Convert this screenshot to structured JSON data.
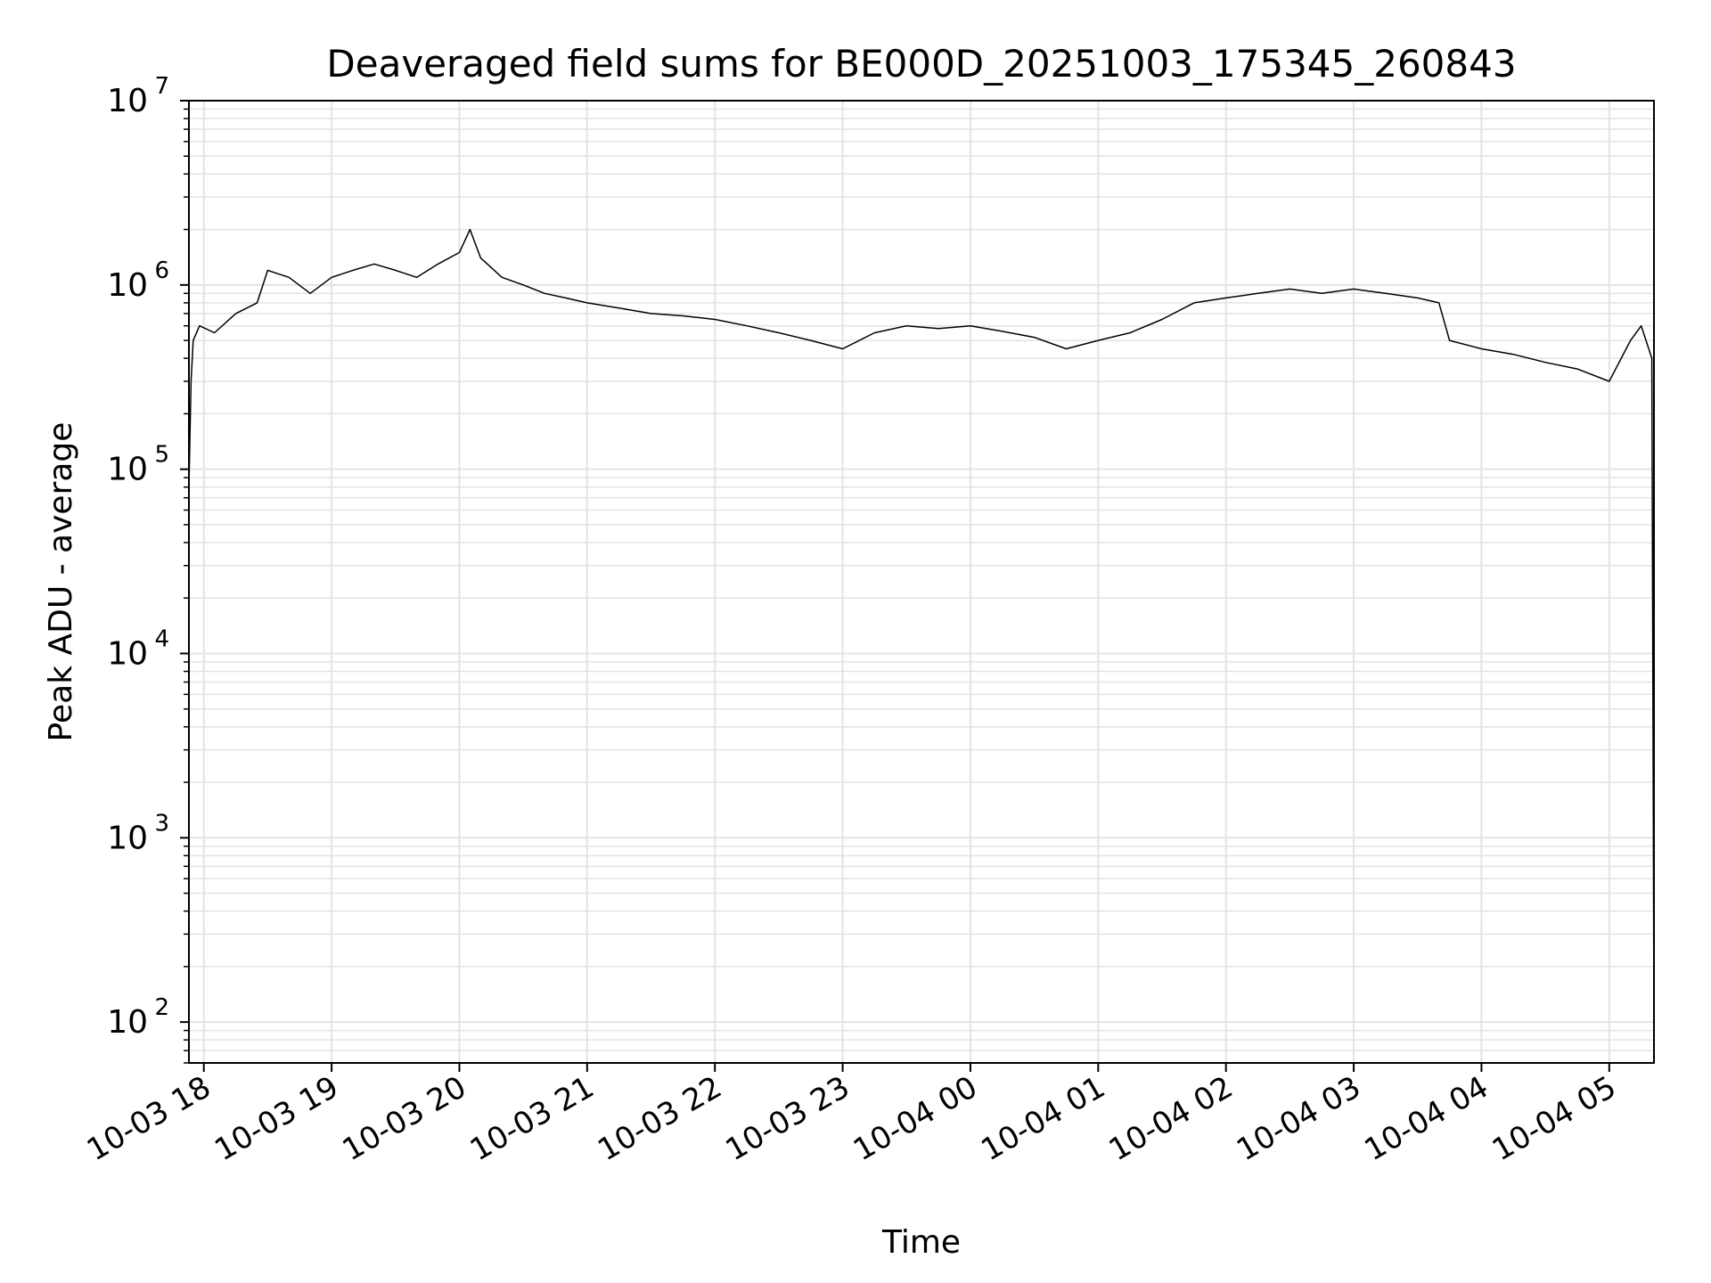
{
  "chart_data": {
    "type": "line",
    "title": "Deaveraged field sums for BE000D_20251003_175345_260843",
    "xlabel": "Time",
    "ylabel": "Peak ADU - average",
    "xlim": [
      "2025-10-03 17:53",
      "2025-10-04 05:21"
    ],
    "ylim": [
      60,
      10000000
    ],
    "yscale": "log",
    "grid": true,
    "legend": "none",
    "line_color": "#000000",
    "grid_color": "#e3e3e3",
    "x_ticks": [
      {
        "value": "2025-10-03 18:00",
        "label": "10-03 18"
      },
      {
        "value": "2025-10-03 19:00",
        "label": "10-03 19"
      },
      {
        "value": "2025-10-03 20:00",
        "label": "10-03 20"
      },
      {
        "value": "2025-10-03 21:00",
        "label": "10-03 21"
      },
      {
        "value": "2025-10-03 22:00",
        "label": "10-03 22"
      },
      {
        "value": "2025-10-03 23:00",
        "label": "10-03 23"
      },
      {
        "value": "2025-10-04 00:00",
        "label": "10-04 00"
      },
      {
        "value": "2025-10-04 01:00",
        "label": "10-04 01"
      },
      {
        "value": "2025-10-04 02:00",
        "label": "10-04 02"
      },
      {
        "value": "2025-10-04 03:00",
        "label": "10-04 03"
      },
      {
        "value": "2025-10-04 04:00",
        "label": "10-04 04"
      },
      {
        "value": "2025-10-04 05:00",
        "label": "10-04 05"
      }
    ],
    "y_ticks": [
      {
        "value": 100,
        "base": "10",
        "exp": "2"
      },
      {
        "value": 1000,
        "base": "10",
        "exp": "3"
      },
      {
        "value": 10000,
        "base": "10",
        "exp": "4"
      },
      {
        "value": 100000,
        "base": "10",
        "exp": "5"
      },
      {
        "value": 1000000,
        "base": "10",
        "exp": "6"
      },
      {
        "value": 10000000,
        "base": "10",
        "exp": "7"
      }
    ],
    "series": [
      {
        "x": [
          "2025-10-03 17:53",
          "2025-10-03 17:54",
          "2025-10-03 17:55",
          "2025-10-03 17:58",
          "2025-10-03 18:05",
          "2025-10-03 18:15",
          "2025-10-03 18:25",
          "2025-10-03 18:30",
          "2025-10-03 18:40",
          "2025-10-03 18:50",
          "2025-10-03 19:00",
          "2025-10-03 19:10",
          "2025-10-03 19:20",
          "2025-10-03 19:30",
          "2025-10-03 19:40",
          "2025-10-03 19:50",
          "2025-10-03 20:00",
          "2025-10-03 20:05",
          "2025-10-03 20:10",
          "2025-10-03 20:20",
          "2025-10-03 20:30",
          "2025-10-03 20:40",
          "2025-10-03 20:50",
          "2025-10-03 21:00",
          "2025-10-03 21:15",
          "2025-10-03 21:30",
          "2025-10-03 21:45",
          "2025-10-03 22:00",
          "2025-10-03 22:15",
          "2025-10-03 22:30",
          "2025-10-03 22:45",
          "2025-10-03 23:00",
          "2025-10-03 23:15",
          "2025-10-03 23:30",
          "2025-10-03 23:45",
          "2025-10-04 00:00",
          "2025-10-04 00:15",
          "2025-10-04 00:30",
          "2025-10-04 00:45",
          "2025-10-04 01:00",
          "2025-10-04 01:15",
          "2025-10-04 01:30",
          "2025-10-04 01:45",
          "2025-10-04 02:00",
          "2025-10-04 02:15",
          "2025-10-04 02:30",
          "2025-10-04 02:45",
          "2025-10-04 03:00",
          "2025-10-04 03:15",
          "2025-10-04 03:30",
          "2025-10-04 03:40",
          "2025-10-04 03:45",
          "2025-10-04 04:00",
          "2025-10-04 04:15",
          "2025-10-04 04:30",
          "2025-10-04 04:45",
          "2025-10-04 05:00",
          "2025-10-04 05:10",
          "2025-10-04 05:15",
          "2025-10-04 05:20",
          "2025-10-04 05:21"
        ],
        "y": [
          80000,
          300000,
          500000,
          600000,
          550000,
          700000,
          800000,
          1200000,
          1100000,
          900000,
          1100000,
          1200000,
          1300000,
          1200000,
          1100000,
          1300000,
          1500000,
          2000000,
          1400000,
          1100000,
          1000000,
          900000,
          850000,
          800000,
          750000,
          700000,
          680000,
          650000,
          600000,
          550000,
          500000,
          450000,
          550000,
          600000,
          580000,
          600000,
          560000,
          520000,
          450000,
          500000,
          550000,
          650000,
          800000,
          850000,
          900000,
          950000,
          900000,
          950000,
          900000,
          850000,
          800000,
          500000,
          450000,
          420000,
          380000,
          350000,
          300000,
          500000,
          600000,
          400000,
          100
        ]
      }
    ]
  }
}
